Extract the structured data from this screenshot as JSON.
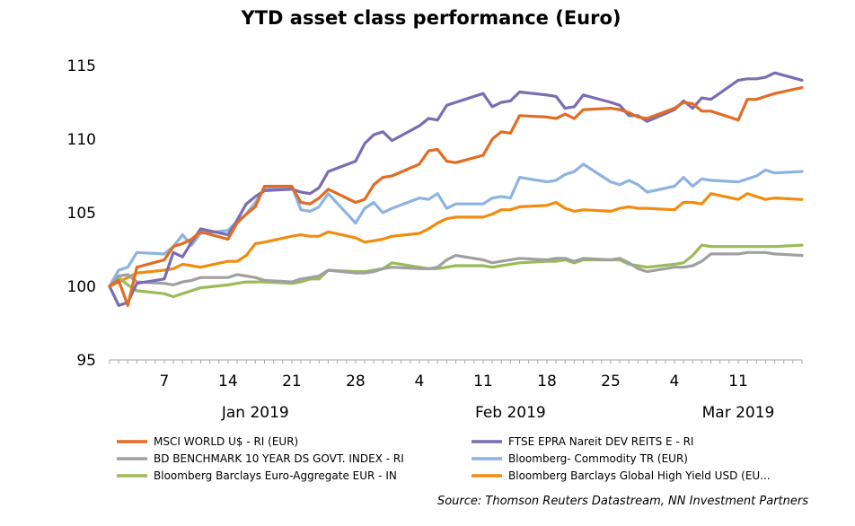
{
  "chart_data": {
    "type": "line",
    "title": "YTD asset class performance (Euro)",
    "source": "Source: Thomson Reuters Datastream, NN Investment Partners",
    "ylim": [
      95,
      115
    ],
    "yticks": [
      "95",
      "100",
      "105",
      "110",
      "115"
    ],
    "xlim": [
      "2019-01-01",
      "2019-03-18"
    ],
    "xticks": [
      {
        "date": "2019-01-07",
        "label": "7"
      },
      {
        "date": "2019-01-14",
        "label": "14"
      },
      {
        "date": "2019-01-21",
        "label": "21"
      },
      {
        "date": "2019-01-28",
        "label": "28"
      },
      {
        "date": "2019-02-04",
        "label": "4"
      },
      {
        "date": "2019-02-11",
        "label": "11"
      },
      {
        "date": "2019-02-18",
        "label": "18"
      },
      {
        "date": "2019-02-25",
        "label": "25"
      },
      {
        "date": "2019-03-04",
        "label": "4"
      },
      {
        "date": "2019-03-11",
        "label": "11"
      }
    ],
    "month_labels": [
      {
        "date": "2019-01-17",
        "label": "Jan 2019"
      },
      {
        "date": "2019-02-14",
        "label": "Feb 2019"
      },
      {
        "date": "2019-03-11",
        "label": "Mar 2019"
      }
    ],
    "grid": false,
    "legend_position": "bottom",
    "x": [
      "2019-01-01",
      "2019-01-02",
      "2019-01-03",
      "2019-01-04",
      "2019-01-07",
      "2019-01-08",
      "2019-01-09",
      "2019-01-10",
      "2019-01-11",
      "2019-01-14",
      "2019-01-15",
      "2019-01-16",
      "2019-01-17",
      "2019-01-18",
      "2019-01-21",
      "2019-01-22",
      "2019-01-23",
      "2019-01-24",
      "2019-01-25",
      "2019-01-28",
      "2019-01-29",
      "2019-01-30",
      "2019-01-31",
      "2019-02-01",
      "2019-02-04",
      "2019-02-05",
      "2019-02-06",
      "2019-02-07",
      "2019-02-08",
      "2019-02-11",
      "2019-02-12",
      "2019-02-13",
      "2019-02-14",
      "2019-02-15",
      "2019-02-18",
      "2019-02-19",
      "2019-02-20",
      "2019-02-21",
      "2019-02-22",
      "2019-02-25",
      "2019-02-26",
      "2019-02-27",
      "2019-02-28",
      "2019-03-01",
      "2019-03-04",
      "2019-03-05",
      "2019-03-06",
      "2019-03-07",
      "2019-03-08",
      "2019-03-11",
      "2019-03-12",
      "2019-03-13",
      "2019-03-14",
      "2019-03-15",
      "2019-03-18"
    ],
    "series": [
      {
        "name": "MSCI WORLD U$ - RI (EUR)",
        "color": "#E46C22",
        "values": [
          100.0,
          100.4,
          98.7,
          101.3,
          101.8,
          102.7,
          102.9,
          103.2,
          103.7,
          103.2,
          104.3,
          104.9,
          105.4,
          106.8,
          106.8,
          105.7,
          105.6,
          106.0,
          106.6,
          105.7,
          105.9,
          106.9,
          107.4,
          107.5,
          108.3,
          109.2,
          109.3,
          108.5,
          108.4,
          108.9,
          110.0,
          110.5,
          110.4,
          111.6,
          111.5,
          111.4,
          111.7,
          111.4,
          112.0,
          112.1,
          112.0,
          111.8,
          111.5,
          111.4,
          112.1,
          112.5,
          112.4,
          111.9,
          111.9,
          111.3,
          112.7,
          112.7,
          112.9,
          113.1,
          113.5
        ]
      },
      {
        "name": "FTSE EPRA Nareit DEV REITS E - RI",
        "color": "#7B6DB3",
        "values": [
          100.0,
          98.7,
          98.9,
          100.2,
          100.5,
          102.3,
          102.0,
          103.0,
          103.9,
          103.5,
          104.5,
          105.6,
          106.1,
          106.5,
          106.6,
          106.4,
          106.3,
          106.7,
          107.8,
          108.5,
          109.7,
          110.3,
          110.5,
          109.9,
          110.9,
          111.4,
          111.3,
          112.3,
          112.5,
          113.1,
          112.2,
          112.5,
          112.6,
          113.2,
          113.0,
          112.9,
          112.1,
          112.2,
          113.0,
          112.5,
          112.3,
          111.6,
          111.6,
          111.2,
          112.0,
          112.6,
          112.1,
          112.8,
          112.7,
          114.0,
          114.1,
          114.1,
          114.2,
          114.5,
          114.0
        ]
      },
      {
        "name": "BD BENCHMARK 10 YEAR DS GOVT. INDEX - RI",
        "color": "#A0A0A0",
        "values": [
          100.0,
          100.7,
          100.8,
          100.3,
          100.2,
          100.1,
          100.3,
          100.4,
          100.6,
          100.6,
          100.8,
          100.7,
          100.6,
          100.4,
          100.3,
          100.5,
          100.6,
          100.7,
          101.1,
          100.9,
          100.9,
          101.0,
          101.2,
          101.3,
          101.2,
          101.2,
          101.3,
          101.8,
          102.1,
          101.8,
          101.6,
          101.7,
          101.8,
          101.9,
          101.8,
          101.9,
          101.9,
          101.7,
          101.9,
          101.8,
          101.9,
          101.6,
          101.2,
          101.0,
          101.3,
          101.3,
          101.4,
          101.7,
          102.2,
          102.2,
          102.3,
          102.3,
          102.3,
          102.2,
          102.1
        ]
      },
      {
        "name": "Bloomberg- Commodity TR (EUR)",
        "color": "#8DB3E2",
        "values": [
          100.0,
          101.1,
          101.3,
          102.3,
          102.2,
          102.7,
          103.5,
          102.8,
          103.6,
          103.8,
          104.4,
          104.9,
          105.7,
          106.6,
          106.8,
          105.2,
          105.1,
          105.4,
          106.3,
          104.3,
          105.3,
          105.7,
          105.0,
          105.3,
          106.0,
          105.9,
          106.3,
          105.3,
          105.6,
          105.6,
          106.0,
          106.1,
          106.0,
          107.4,
          107.1,
          107.2,
          107.6,
          107.8,
          108.3,
          107.1,
          106.9,
          107.2,
          106.9,
          106.4,
          106.8,
          107.4,
          106.8,
          107.3,
          107.2,
          107.1,
          107.3,
          107.5,
          107.9,
          107.7,
          107.8
        ]
      },
      {
        "name": "Bloomberg Barclays Euro-Aggregate EUR - IN",
        "color": "#9BBB59",
        "values": [
          100.0,
          100.6,
          100.1,
          99.7,
          99.5,
          99.3,
          99.5,
          99.7,
          99.9,
          100.1,
          100.2,
          100.3,
          100.3,
          100.3,
          100.2,
          100.3,
          100.5,
          100.5,
          101.1,
          101.0,
          101.0,
          101.1,
          101.2,
          101.6,
          101.3,
          101.2,
          101.2,
          101.3,
          101.4,
          101.4,
          101.3,
          101.4,
          101.5,
          101.6,
          101.7,
          101.7,
          101.8,
          101.6,
          101.8,
          101.8,
          101.8,
          101.5,
          101.4,
          101.3,
          101.5,
          101.6,
          102.1,
          102.8,
          102.7,
          102.7,
          102.7,
          102.7,
          102.7,
          102.7,
          102.8
        ]
      },
      {
        "name": "Bloomberg Barclays Global High Yield USD (EU...",
        "color": "#F28C0F",
        "values": [
          100.0,
          100.3,
          100.6,
          100.9,
          101.1,
          101.2,
          101.5,
          101.4,
          101.3,
          101.7,
          101.7,
          102.1,
          102.9,
          103.0,
          103.4,
          103.5,
          103.4,
          103.4,
          103.7,
          103.3,
          103.0,
          103.1,
          103.2,
          103.4,
          103.6,
          103.9,
          104.3,
          104.6,
          104.7,
          104.7,
          104.9,
          105.2,
          105.2,
          105.4,
          105.5,
          105.7,
          105.3,
          105.1,
          105.2,
          105.1,
          105.3,
          105.4,
          105.3,
          105.3,
          105.2,
          105.7,
          105.7,
          105.6,
          106.3,
          105.9,
          106.3,
          106.1,
          105.9,
          106.0,
          105.9
        ]
      }
    ]
  }
}
